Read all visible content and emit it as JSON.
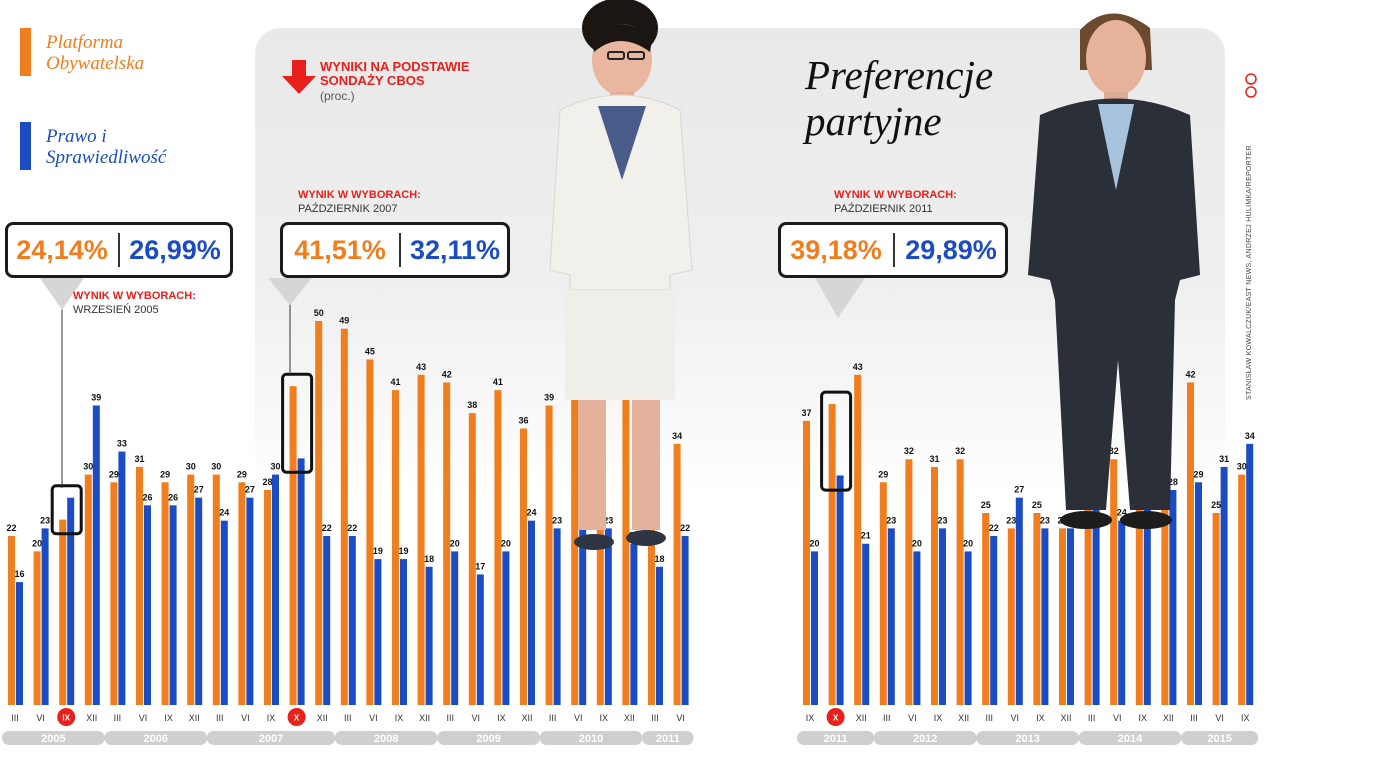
{
  "legend": [
    {
      "label": "Platforma Obywatelska",
      "color": "#f07d1e"
    },
    {
      "label": "Prawo i Sprawiedliwość",
      "color": "#1b4cc4"
    }
  ],
  "title": "Preferencje partyjne",
  "source": {
    "line1": "WYNIKI NA PODSTAWIE",
    "line2": "SONDAŻY CBOS",
    "unit": "(proc.)",
    "icon": "arrow-down-icon"
  },
  "elections": [
    {
      "po": "24,14%",
      "pis": "26,99%",
      "label": "WYNIK W WYBORACH:",
      "date": "WRZESIEŃ 2005"
    },
    {
      "po": "41,51%",
      "pis": "32,11%",
      "label": "WYNIK W WYBORACH:",
      "date": "PAŹDZIERNIK 2007"
    },
    {
      "po": "39,18%",
      "pis": "29,89%",
      "label": "WYNIK W WYBORACH:",
      "date": "PAŹDZIERNIK 2011"
    }
  ],
  "credit": "STANISŁAW KOWALCZUK/EAST NEWS, ANDRZEJ HULIMKA/REPORTER",
  "colors": {
    "po": "#f07d1e",
    "pis": "#1b4cc4",
    "election_marker": "#e8211c"
  },
  "chart_data": {
    "type": "bar",
    "title": "Preferencje partyjne",
    "ylabel": "(proc.)",
    "ylim": [
      0,
      50
    ],
    "series": [
      {
        "name": "Platforma Obywatelska",
        "values": [
          22,
          20,
          null,
          30,
          29,
          31,
          29,
          30,
          30,
          29,
          28,
          null,
          50,
          49,
          45,
          41,
          43,
          42,
          38,
          41,
          36,
          39,
          42,
          43,
          41,
          35,
          34,
          37,
          null,
          43,
          29,
          32,
          31,
          32,
          25,
          23,
          25,
          23,
          26,
          32,
          38,
          43,
          42,
          25,
          30
        ]
      },
      {
        "name": "Prawo i Sprawiedliwość",
        "values": [
          16,
          23,
          null,
          39,
          33,
          26,
          26,
          27,
          24,
          27,
          30,
          null,
          22,
          22,
          19,
          19,
          18,
          20,
          17,
          20,
          24,
          23,
          28,
          23,
          21,
          18,
          22,
          20,
          null,
          21,
          23,
          20,
          23,
          20,
          22,
          27,
          23,
          23,
          26,
          24,
          33,
          28,
          29,
          31,
          34
        ]
      }
    ],
    "categories": [
      "III",
      "VI",
      "IX",
      "XII",
      "III",
      "VI",
      "IX",
      "XII",
      "III",
      "VI",
      "IX",
      "X",
      "XII",
      "III",
      "VI",
      "IX",
      "XII",
      "III",
      "VI",
      "IX",
      "XII",
      "III",
      "VI",
      "IX",
      "XII",
      "III",
      "VI",
      "IX",
      "X",
      "XII",
      "III",
      "VI",
      "IX",
      "XII",
      "III",
      "VI",
      "IX",
      "XII",
      "III",
      "VI",
      "IX",
      "XII",
      "III",
      "VI",
      "IX"
    ],
    "election_categories": [
      "IX",
      "X",
      "X"
    ],
    "years": [
      {
        "label": "2005",
        "from": 0,
        "to": 3
      },
      {
        "label": "2006",
        "from": 4,
        "to": 7
      },
      {
        "label": "2007",
        "from": 8,
        "to": 12
      },
      {
        "label": "2008",
        "from": 13,
        "to": 16
      },
      {
        "label": "2009",
        "from": 17,
        "to": 20
      },
      {
        "label": "2010",
        "from": 21,
        "to": 24
      },
      {
        "label": "2011",
        "from": 25,
        "to": 26
      },
      {
        "label": "2011",
        "from": 27,
        "to": 29
      },
      {
        "label": "2012",
        "from": 30,
        "to": 33
      },
      {
        "label": "2013",
        "from": 34,
        "to": 37
      },
      {
        "label": "2014",
        "from": 38,
        "to": 41
      },
      {
        "label": "2015",
        "from": 42,
        "to": 44
      }
    ]
  }
}
